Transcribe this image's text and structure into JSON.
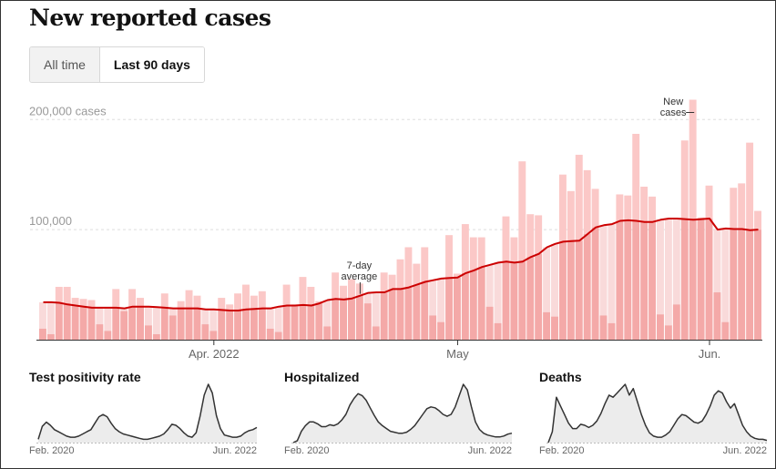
{
  "title": "New reported cases",
  "toggle": {
    "all_time_label": "All time",
    "last_90_label": "Last 90 days",
    "selected": "Last 90 days"
  },
  "colors": {
    "bar": "#f4a9a8",
    "bar_light": "#fbc8c7",
    "area": "#f9dada",
    "line": "#cc0000",
    "small_line": "#333333",
    "small_area": "#ececec"
  },
  "chart_data": [
    {
      "type": "bar",
      "title": "New reported cases",
      "ylim": [
        0,
        230000
      ],
      "yticks": [
        {
          "value": 200000,
          "label": "200,000 cases"
        },
        {
          "value": 100000,
          "label": "100,000"
        }
      ],
      "xticks": [
        {
          "index": 21,
          "label": "Apr. 2022"
        },
        {
          "index": 51,
          "label": "May"
        },
        {
          "index": 82,
          "label": "Jun."
        }
      ],
      "series": [
        {
          "name": "New cases",
          "values": [
            10000,
            5000,
            48000,
            48000,
            38000,
            37000,
            36000,
            14000,
            8000,
            46000,
            26000,
            46000,
            38000,
            13000,
            5000,
            42000,
            22000,
            35000,
            45000,
            40000,
            14000,
            8000,
            38000,
            32000,
            42000,
            50000,
            40000,
            44000,
            10000,
            7000,
            50000,
            32000,
            57000,
            48000,
            35000,
            12000,
            61000,
            49000,
            55000,
            51000,
            33000,
            12000,
            61000,
            59000,
            73000,
            84000,
            69000,
            84000,
            22000,
            16000,
            95000,
            60000,
            105000,
            93000,
            93000,
            30000,
            15000,
            112000,
            93000,
            162000,
            114000,
            113000,
            25000,
            21000,
            150000,
            135000,
            168000,
            154000,
            137000,
            22000,
            15000,
            132000,
            131000,
            187000,
            139000,
            130000,
            23000,
            13000,
            32000,
            181000,
            218000,
            111000,
            140000,
            43000,
            16000,
            138000,
            142000,
            179000,
            117000
          ]
        },
        {
          "name": "7-day average",
          "values": [
            34000,
            34000,
            33500,
            32000,
            31000,
            30000,
            29000,
            29000,
            29000,
            29000,
            28500,
            30000,
            30000,
            30000,
            29500,
            29000,
            28500,
            28500,
            28500,
            28500,
            27500,
            27500,
            27000,
            26500,
            26500,
            27500,
            28000,
            28500,
            28500,
            30000,
            31000,
            31000,
            31500,
            31000,
            33000,
            36000,
            37000,
            36500,
            37500,
            40000,
            42500,
            43000,
            43000,
            46000,
            46000,
            47500,
            50000,
            52500,
            54000,
            55500,
            56000,
            56500,
            60500,
            63000,
            66000,
            68000,
            70000,
            71000,
            70000,
            71000,
            75000,
            78000,
            84000,
            87000,
            89000,
            89500,
            90000,
            96000,
            102000,
            104000,
            105000,
            108000,
            108500,
            108000,
            107000,
            107000,
            109000,
            110000,
            110000,
            109500,
            109000,
            109500,
            110000,
            100000,
            101000,
            100500,
            100500,
            99500,
            100000
          ]
        }
      ],
      "annotations": [
        {
          "text": "7-day",
          "text2": "average",
          "index": 39
        },
        {
          "text": "New",
          "text2": "cases",
          "index": 80
        }
      ]
    },
    {
      "type": "area",
      "title": "Test positivity rate",
      "x_start_label": "Feb. 2020",
      "x_end_label": "Jun. 2022",
      "values": [
        3,
        15,
        19,
        16,
        12,
        10,
        8,
        6,
        5,
        5,
        6,
        8,
        10,
        12,
        18,
        24,
        26,
        24,
        18,
        13,
        10,
        8,
        7,
        6,
        5,
        4,
        3,
        3,
        4,
        5,
        6,
        8,
        12,
        17,
        16,
        13,
        9,
        6,
        5,
        9,
        25,
        44,
        54,
        46,
        25,
        13,
        7,
        6,
        5,
        5,
        6,
        9,
        11,
        12,
        14
      ]
    },
    {
      "type": "area",
      "title": "Hospitalized",
      "x_start_label": "Feb. 2020",
      "x_end_label": "Jun. 2022",
      "values": [
        0,
        2,
        12,
        18,
        22,
        22,
        20,
        17,
        17,
        19,
        18,
        20,
        24,
        30,
        40,
        47,
        52,
        50,
        45,
        37,
        29,
        22,
        18,
        15,
        12,
        11,
        10,
        10,
        11,
        14,
        18,
        24,
        30,
        36,
        38,
        37,
        34,
        30,
        28,
        30,
        38,
        50,
        62,
        56,
        38,
        22,
        14,
        10,
        8,
        7,
        6,
        6,
        7,
        9,
        10
      ]
    },
    {
      "type": "area",
      "title": "Deaths",
      "x_start_label": "Feb. 2020",
      "x_end_label": "Jun. 2022",
      "values": [
        0,
        10,
        42,
        34,
        26,
        18,
        13,
        13,
        17,
        16,
        14,
        16,
        20,
        27,
        36,
        44,
        42,
        46,
        50,
        54,
        44,
        50,
        38,
        26,
        16,
        9,
        6,
        5,
        5,
        7,
        10,
        16,
        22,
        26,
        25,
        22,
        19,
        18,
        20,
        26,
        34,
        44,
        48,
        46,
        38,
        32,
        36,
        26,
        16,
        10,
        6,
        4,
        3,
        3,
        2
      ]
    }
  ]
}
